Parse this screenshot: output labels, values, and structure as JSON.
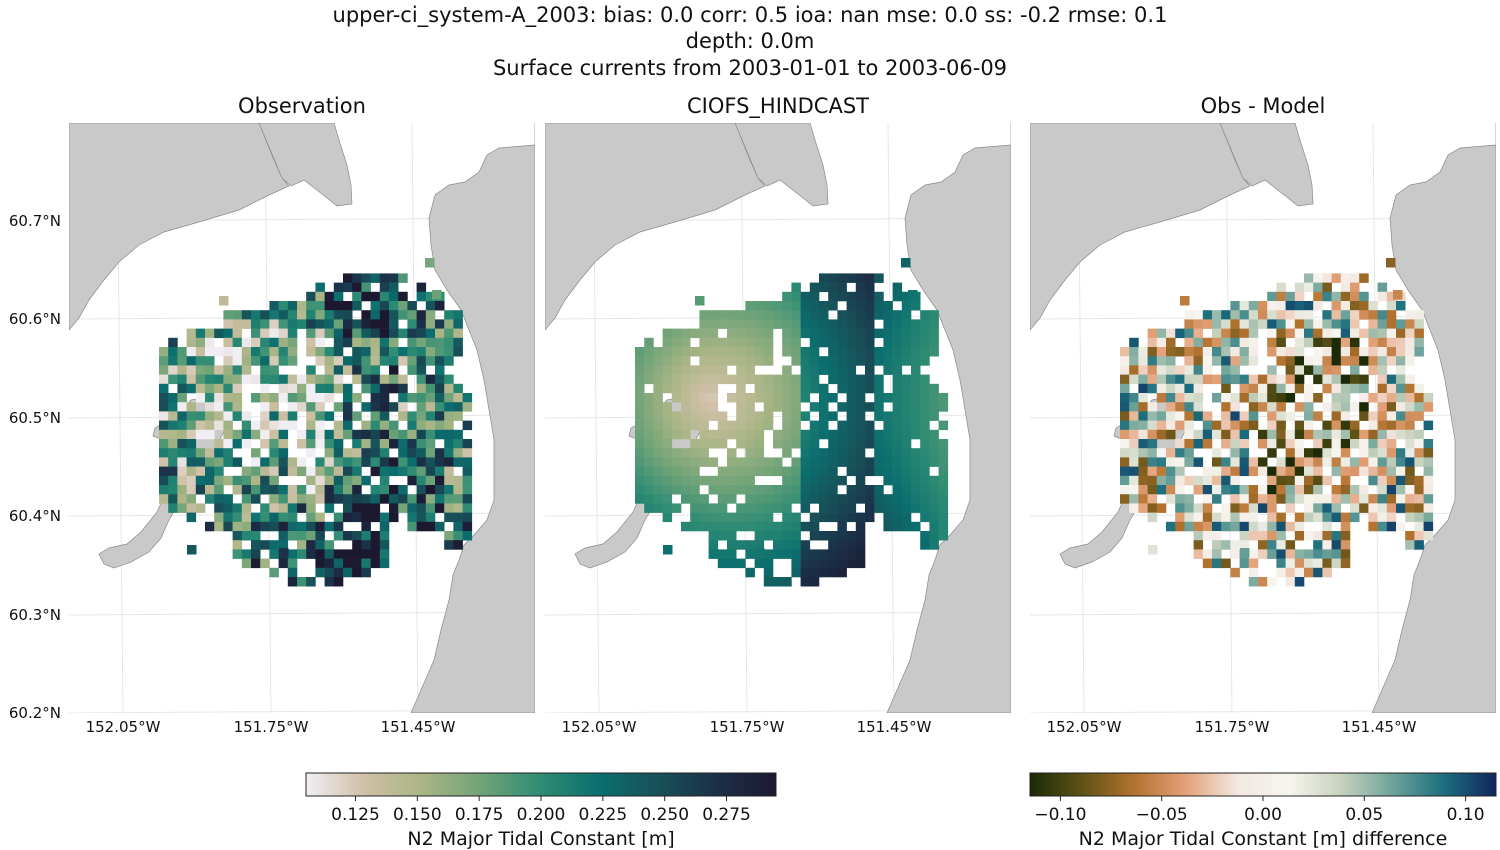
{
  "figure": {
    "title_lines": [
      "upper-ci_system-A_2003: bias: 0.0  corr: 0.5  ioa: nan  mse: 0.0  ss: -0.2  rmse: 0.1",
      "depth: 0.0m",
      "Surface currents from 2003-01-01 to 2003-06-09"
    ]
  },
  "chart_data": [
    {
      "type": "heatmap",
      "title": "Observation",
      "lon_range": [
        -152.15,
        -151.2
      ],
      "lat_range": [
        60.2,
        60.8
      ],
      "xticks": [
        -152.05,
        -151.75,
        -151.45
      ],
      "xtick_labels": [
        "152.05°W",
        "151.75°W",
        "151.45°W"
      ],
      "yticks": [
        60.2,
        60.3,
        60.4,
        60.5,
        60.6,
        60.7
      ],
      "ytick_labels": [
        "60.2°N",
        "60.3°N",
        "60.4°N",
        "60.5°N",
        "60.6°N",
        "60.7°N"
      ],
      "grid": true,
      "colormap": "tempo",
      "colorbar_shared": "N2 Major Tidal Constant [m]",
      "value_range": [
        0.105,
        0.295
      ]
    },
    {
      "type": "heatmap",
      "title": "CIOFS_HINDCAST",
      "lon_range": [
        -152.15,
        -151.2
      ],
      "lat_range": [
        60.2,
        60.8
      ],
      "xticks": [
        -152.05,
        -151.75,
        -151.45
      ],
      "xtick_labels": [
        "152.05°W",
        "151.75°W",
        "151.45°W"
      ],
      "grid": true,
      "colormap": "tempo",
      "value_range": [
        0.105,
        0.295
      ]
    },
    {
      "type": "heatmap",
      "title": "Obs - Model",
      "lon_range": [
        -152.15,
        -151.2
      ],
      "lat_range": [
        60.2,
        60.8
      ],
      "xticks": [
        -152.05,
        -151.75,
        -151.45
      ],
      "xtick_labels": [
        "152.05°W",
        "151.75°W",
        "151.45°W"
      ],
      "grid": true,
      "colormap": "diff",
      "value_range": [
        -0.115,
        0.115
      ]
    }
  ],
  "colorbars": [
    {
      "label": "N2 Major Tidal Constant [m]",
      "ticks": [
        0.125,
        0.15,
        0.175,
        0.2,
        0.225,
        0.25,
        0.275
      ],
      "tick_labels": [
        "0.125",
        "0.150",
        "0.175",
        "0.200",
        "0.225",
        "0.250",
        "0.275"
      ],
      "range": [
        0.105,
        0.295
      ],
      "stops": [
        "#f1eef3",
        "#cfbfa6",
        "#a9b585",
        "#6fa378",
        "#2e8c74",
        "#0b6e6e",
        "#175058",
        "#1b3048",
        "#1c1830"
      ]
    },
    {
      "label": "N2 Major Tidal Constant [m] difference",
      "ticks": [
        -0.1,
        -0.05,
        0.0,
        0.05,
        0.1
      ],
      "tick_labels": [
        "−0.10",
        "−0.05",
        "0.00",
        "0.05",
        "0.10"
      ],
      "range": [
        -0.115,
        0.115
      ],
      "stops": [
        "#1b2a07",
        "#5e5216",
        "#b2722e",
        "#e3a077",
        "#f3e7e1",
        "#f7f5ef",
        "#c8d2bd",
        "#6ea39a",
        "#1b6e7d",
        "#11255e"
      ]
    }
  ],
  "colors": {
    "land": "#c9c9c9",
    "land_edge": "#8a8a8a",
    "grid": "#e6e6e6"
  }
}
